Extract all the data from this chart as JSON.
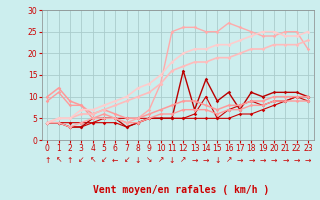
{
  "title": "",
  "xlabel": "Vent moyen/en rafales ( km/h )",
  "ylabel": "",
  "xlim": [
    -0.5,
    23.5
  ],
  "ylim": [
    0,
    30
  ],
  "xticks": [
    0,
    1,
    2,
    3,
    4,
    5,
    6,
    7,
    8,
    9,
    10,
    11,
    12,
    13,
    14,
    15,
    16,
    17,
    18,
    19,
    20,
    21,
    22,
    23
  ],
  "yticks": [
    0,
    5,
    10,
    15,
    20,
    25,
    30
  ],
  "bg_color": "#cceeee",
  "grid_color": "#aacccc",
  "lines": [
    {
      "x": [
        0,
        1,
        2,
        3,
        4,
        5,
        6,
        7,
        8,
        9,
        10,
        11,
        12,
        13,
        14,
        15,
        16,
        17,
        18,
        19,
        20,
        21,
        22,
        23
      ],
      "y": [
        4,
        4,
        4,
        4,
        4,
        5,
        5,
        5,
        5,
        5,
        5,
        5,
        5,
        5,
        5,
        5,
        5,
        6,
        6,
        7,
        8,
        9,
        10,
        10
      ],
      "color": "#cc0000",
      "lw": 0.8,
      "marker": "D",
      "ms": 1.8
    },
    {
      "x": [
        0,
        1,
        2,
        3,
        4,
        5,
        6,
        7,
        8,
        9,
        10,
        11,
        12,
        13,
        14,
        15,
        16,
        17,
        18,
        19,
        20,
        21,
        22,
        23
      ],
      "y": [
        4,
        4,
        3,
        3,
        4,
        4,
        4,
        3,
        4,
        5,
        5,
        5,
        5,
        6,
        10,
        5,
        7,
        8,
        9,
        8,
        9,
        9,
        10,
        9
      ],
      "color": "#cc0000",
      "lw": 0.8,
      "marker": "D",
      "ms": 1.8
    },
    {
      "x": [
        0,
        1,
        2,
        3,
        4,
        5,
        6,
        7,
        8,
        9,
        10,
        11,
        12,
        13,
        14,
        15,
        16,
        17,
        18,
        19,
        20,
        21,
        22,
        23
      ],
      "y": [
        4,
        4,
        3,
        3,
        5,
        5,
        5,
        3,
        4,
        5,
        5,
        5,
        16,
        7,
        14,
        9,
        11,
        7,
        11,
        10,
        11,
        11,
        11,
        10
      ],
      "color": "#bb0000",
      "lw": 1.0,
      "marker": "D",
      "ms": 1.8
    },
    {
      "x": [
        0,
        1,
        2,
        3,
        4,
        5,
        6,
        7,
        8,
        9,
        10,
        11,
        12,
        13,
        14,
        15,
        16,
        17,
        18,
        19,
        20,
        21,
        22,
        23
      ],
      "y": [
        9,
        11,
        8,
        8,
        5,
        6,
        5,
        4,
        4,
        5,
        6,
        6,
        7,
        7,
        7,
        6,
        7,
        7,
        8,
        8,
        9,
        9,
        9,
        9
      ],
      "color": "#ff9999",
      "lw": 1.0,
      "marker": "D",
      "ms": 1.8
    },
    {
      "x": [
        0,
        1,
        2,
        3,
        4,
        5,
        6,
        7,
        8,
        9,
        10,
        11,
        12,
        13,
        14,
        15,
        16,
        17,
        18,
        19,
        20,
        21,
        22,
        23
      ],
      "y": [
        10,
        12,
        9,
        8,
        6,
        7,
        6,
        5,
        5,
        6,
        7,
        8,
        9,
        9,
        8,
        7,
        8,
        8,
        9,
        9,
        10,
        10,
        10,
        10
      ],
      "color": "#ff9999",
      "lw": 1.1,
      "marker": "D",
      "ms": 1.8
    },
    {
      "x": [
        0,
        1,
        2,
        3,
        4,
        5,
        6,
        7,
        8,
        9,
        10,
        11,
        12,
        13,
        14,
        15,
        16,
        17,
        18,
        19,
        20,
        21,
        22,
        23
      ],
      "y": [
        4,
        4,
        3,
        4,
        5,
        5,
        5,
        4,
        5,
        7,
        13,
        25,
        26,
        26,
        25,
        25,
        27,
        26,
        25,
        24,
        24,
        25,
        25,
        21
      ],
      "color": "#ffaaaa",
      "lw": 1.0,
      "marker": "D",
      "ms": 1.8
    },
    {
      "x": [
        0,
        1,
        2,
        3,
        4,
        5,
        6,
        7,
        8,
        9,
        10,
        11,
        12,
        13,
        14,
        15,
        16,
        17,
        18,
        19,
        20,
        21,
        22,
        23
      ],
      "y": [
        4,
        5,
        5,
        6,
        6,
        7,
        8,
        9,
        10,
        11,
        13,
        16,
        17,
        18,
        18,
        19,
        19,
        20,
        21,
        21,
        22,
        22,
        22,
        23
      ],
      "color": "#ffbbbb",
      "lw": 1.2,
      "marker": "D",
      "ms": 1.8
    },
    {
      "x": [
        0,
        1,
        2,
        3,
        4,
        5,
        6,
        7,
        8,
        9,
        10,
        11,
        12,
        13,
        14,
        15,
        16,
        17,
        18,
        19,
        20,
        21,
        22,
        23
      ],
      "y": [
        4,
        5,
        5,
        7,
        7,
        8,
        9,
        10,
        12,
        13,
        15,
        18,
        20,
        21,
        21,
        22,
        22,
        23,
        24,
        25,
        25,
        24,
        24,
        25
      ],
      "color": "#ffcccc",
      "lw": 1.2,
      "marker": "D",
      "ms": 1.8
    }
  ],
  "arrows": [
    "↑",
    "↖",
    "↑",
    "↙",
    "↖",
    "↙",
    "←",
    "↙",
    "↓",
    "↘",
    "↗",
    "↓",
    "↗",
    "→",
    "→",
    "↓",
    "↗",
    "→",
    "→",
    "→",
    "→",
    "→",
    "→",
    "→"
  ],
  "tick_fontsize": 5.5,
  "label_fontsize": 7,
  "arrow_fontsize": 5.5
}
